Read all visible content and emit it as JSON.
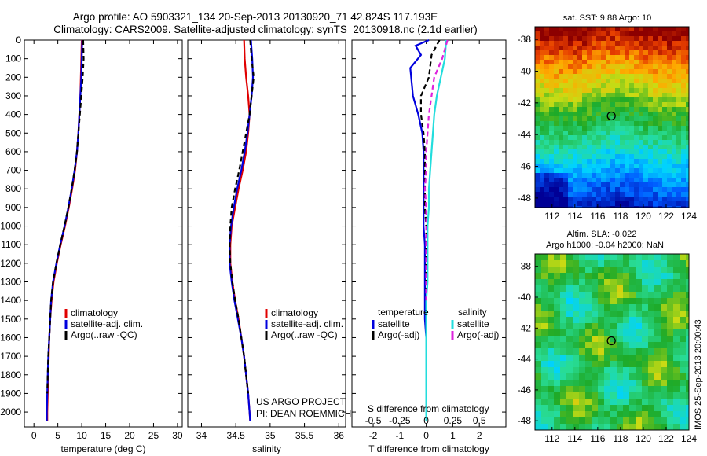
{
  "header": {
    "line1": "Argo profile: AO 5903321_134 20-Sep-2013 20130920_71 42.824S 117.193E",
    "line2": "Climatology: CARS2009. Satellite-adjusted climatology: synTS_20130918.nc (2.1d earlier)"
  },
  "credits": {
    "project": "US ARGO PROJECT",
    "pi": "PI: DEAN ROEMMICH",
    "imos": "IMOS 25-Sep-2013 20:00:43"
  },
  "colors": {
    "climatology": "#e00000",
    "satellite": "#0000dd",
    "argo": "#000000",
    "salinity_satellite": "#22dddd",
    "salinity_argo": "#dd22dd"
  },
  "chart_data": [
    {
      "type": "line",
      "panel": "temperature",
      "xlabel": "temperature (deg C)",
      "ylabel": "",
      "xlim": [
        -2,
        31
      ],
      "ylim": [
        2080,
        0
      ],
      "xticks": [
        0,
        5,
        10,
        15,
        20,
        25,
        30
      ],
      "yticks": [
        0,
        100,
        200,
        300,
        400,
        500,
        600,
        700,
        800,
        900,
        1000,
        1100,
        1200,
        1300,
        1400,
        1500,
        1600,
        1700,
        1800,
        1900,
        2000
      ],
      "y_reversed": true,
      "legend": [
        "climatology",
        "satellite-adj. clim.",
        "Argo(..raw -QC)"
      ],
      "series": [
        {
          "name": "climatology",
          "color": "#e00000",
          "x": [
            10.0,
            9.9,
            9.8,
            9.7,
            9.5,
            9.3,
            9.0,
            8.6,
            8.0,
            7.3,
            6.5,
            5.6,
            4.8,
            4.1,
            3.7,
            3.4,
            3.2,
            3.1,
            3.0,
            2.9,
            2.8,
            2.8
          ],
          "y": [
            0,
            100,
            200,
            300,
            400,
            500,
            600,
            700,
            800,
            900,
            1000,
            1100,
            1200,
            1300,
            1400,
            1500,
            1600,
            1700,
            1800,
            1900,
            2000,
            2050
          ]
        },
        {
          "name": "satellite-adj. clim.",
          "color": "#0000dd",
          "x": [
            10.1,
            10.0,
            9.9,
            9.7,
            9.5,
            9.3,
            9.0,
            8.5,
            7.9,
            7.2,
            6.4,
            5.5,
            4.7,
            4.0,
            3.6,
            3.4,
            3.2,
            3.0,
            2.9,
            2.8,
            2.7,
            2.7
          ],
          "y": [
            0,
            100,
            200,
            300,
            400,
            500,
            600,
            700,
            800,
            900,
            1000,
            1100,
            1200,
            1300,
            1400,
            1500,
            1600,
            1700,
            1800,
            1900,
            2000,
            2050
          ]
        },
        {
          "name": "Argo(..raw -QC)",
          "color": "#000000",
          "dash": true,
          "x": [
            10.3,
            10.4,
            10.2,
            9.9,
            9.6,
            9.3,
            9.0,
            8.5,
            7.9,
            7.2,
            6.4,
            5.5,
            4.7,
            4.0,
            3.6,
            3.4,
            3.2,
            3.0,
            2.9,
            2.8
          ],
          "y": [
            0,
            100,
            200,
            300,
            400,
            500,
            600,
            700,
            800,
            900,
            1000,
            1100,
            1200,
            1300,
            1400,
            1500,
            1600,
            1700,
            1800,
            1900
          ]
        }
      ]
    },
    {
      "type": "line",
      "panel": "salinity",
      "xlabel": "salinity",
      "ylabel": "",
      "xlim": [
        33.8,
        36.1
      ],
      "ylim": [
        2080,
        0
      ],
      "xticks": [
        34,
        34.5,
        35,
        35.5,
        36
      ],
      "xticklabels": [
        "34",
        "34.5",
        "35",
        "35.5",
        "36"
      ],
      "y_reversed": true,
      "legend": [
        "climatology",
        "satellite-adj. clim.",
        "Argo(..raw -QC)"
      ],
      "series": [
        {
          "name": "climatology",
          "color": "#e00000",
          "x": [
            34.62,
            34.63,
            34.65,
            34.68,
            34.7,
            34.68,
            34.65,
            34.6,
            34.54,
            34.49,
            34.44,
            34.42,
            34.42,
            34.45,
            34.49,
            34.54,
            34.58,
            34.62,
            34.65,
            34.68,
            34.7,
            34.71
          ],
          "y": [
            0,
            100,
            200,
            300,
            400,
            500,
            600,
            700,
            800,
            900,
            1000,
            1100,
            1200,
            1300,
            1400,
            1500,
            1600,
            1700,
            1800,
            1900,
            2000,
            2050
          ]
        },
        {
          "name": "satellite-adj. clim.",
          "color": "#0000dd",
          "x": [
            34.72,
            34.74,
            34.75,
            34.73,
            34.7,
            34.67,
            34.63,
            34.58,
            34.52,
            34.47,
            34.43,
            34.41,
            34.41,
            34.44,
            34.48,
            34.53,
            34.58,
            34.62,
            34.65,
            34.68,
            34.7,
            34.71
          ],
          "y": [
            0,
            100,
            200,
            300,
            400,
            500,
            600,
            700,
            800,
            900,
            1000,
            1100,
            1200,
            1300,
            1400,
            1500,
            1600,
            1700,
            1800,
            1900,
            2000,
            2050
          ]
        },
        {
          "name": "Argo(..raw -QC)",
          "color": "#000000",
          "dash": true,
          "x": [
            34.71,
            34.73,
            34.76,
            34.73,
            34.7,
            34.65,
            34.6,
            34.55,
            34.49,
            34.44,
            34.42,
            34.41,
            34.42,
            34.45,
            34.49,
            34.54,
            34.58,
            34.62,
            34.65,
            34.68
          ],
          "y": [
            0,
            100,
            200,
            300,
            400,
            500,
            600,
            700,
            800,
            900,
            1000,
            1100,
            1200,
            1300,
            1400,
            1500,
            1600,
            1700,
            1800,
            1900
          ]
        }
      ]
    },
    {
      "type": "line",
      "panel": "difference",
      "xlabel": "T difference from climatology",
      "xlabel_top": "S difference from climatology",
      "xlim": [
        -2.8,
        3.0
      ],
      "ylim": [
        2080,
        0
      ],
      "xticks": [
        -2,
        -1,
        0,
        1,
        2
      ],
      "xticklabels": [
        "-2",
        "-1",
        "0",
        "1",
        "2"
      ],
      "top_scale_ticks": [
        -0.5,
        -0.25,
        0,
        0.25,
        0.5
      ],
      "top_scale_labels": [
        "-0.5",
        "-0.25",
        "0",
        "0.25",
        "0.5"
      ],
      "y_reversed": true,
      "legend_left_title": "temperature",
      "legend_right_title": "salinity",
      "legend": [
        "satellite",
        "Argo(-adj)",
        "satellite",
        "Argo(-adj)"
      ],
      "series": [
        {
          "name": "temperature satellite",
          "color": "#0000dd",
          "x": [
            0.1,
            -0.4,
            -0.2,
            -0.6,
            -0.5,
            -0.3,
            -0.15,
            -0.1,
            -0.1,
            -0.1,
            -0.1,
            -0.1,
            -0.05,
            -0.05,
            -0.05,
            -0.05,
            -0.05,
            0.0,
            0.0,
            0.0,
            0.0
          ],
          "y": [
            0,
            30,
            80,
            150,
            300,
            400,
            500,
            600,
            700,
            800,
            900,
            1000,
            1100,
            1200,
            1300,
            1400,
            1500,
            1600,
            1700,
            1800,
            2050
          ]
        },
        {
          "name": "temperature Argo(-adj)",
          "color": "#000000",
          "dash": true,
          "x": [
            0.5,
            0.2,
            0.1,
            -0.2,
            -0.2,
            -0.1,
            -0.05,
            -0.05,
            -0.05,
            -0.05,
            0.0,
            0.0,
            0.0,
            0.0,
            0.0
          ],
          "y": [
            0,
            80,
            200,
            300,
            400,
            500,
            600,
            700,
            800,
            900,
            1000,
            1100,
            1200,
            1300,
            1400
          ]
        },
        {
          "name": "salinity satellite",
          "color": "#22dddd",
          "x": [
            0.75,
            0.7,
            0.55,
            0.4,
            0.3,
            0.25,
            0.2,
            0.15,
            0.1,
            0.1,
            0.05,
            0.05,
            0.05,
            0.05,
            0.0,
            0.0,
            0.0
          ],
          "y": [
            0,
            100,
            200,
            300,
            400,
            500,
            600,
            700,
            800,
            900,
            1000,
            1100,
            1200,
            1300,
            1400,
            1500,
            2050
          ]
        },
        {
          "name": "salinity Argo(-adj)",
          "color": "#dd22dd",
          "dash": true,
          "x": [
            0.8,
            0.6,
            0.3,
            0.2,
            0.1,
            0.05,
            0.0,
            0.0,
            -0.05,
            0.0,
            0.0,
            0.0,
            0.0,
            0.0,
            0.0
          ],
          "y": [
            0,
            100,
            200,
            300,
            400,
            500,
            600,
            700,
            800,
            900,
            1000,
            1100,
            1200,
            1300,
            1400
          ]
        }
      ]
    },
    {
      "type": "heatmap",
      "panel": "sat_sst_map",
      "title": "sat. SST: 9.88 Argo: 10",
      "xlim": [
        110.5,
        124
      ],
      "ylim": [
        -48.6,
        -37.2
      ],
      "xticks": [
        112,
        114,
        116,
        118,
        120,
        122,
        124
      ],
      "yticks": [
        -38,
        -40,
        -42,
        -44,
        -46,
        -48
      ],
      "marker": {
        "lon": 117.193,
        "lat": -42.824
      }
    },
    {
      "type": "heatmap",
      "panel": "altim_sla_map",
      "title": "Altim. SLA: -0.022",
      "subtitle": "Argo h1000: -0.04 h2000: NaN",
      "xlim": [
        110.5,
        124
      ],
      "ylim": [
        -48.6,
        -37.2
      ],
      "xticks": [
        112,
        114,
        116,
        118,
        120,
        122,
        124
      ],
      "yticks": [
        -38,
        -40,
        -42,
        -44,
        -46,
        -48
      ],
      "marker": {
        "lon": 117.193,
        "lat": -42.824
      }
    }
  ]
}
